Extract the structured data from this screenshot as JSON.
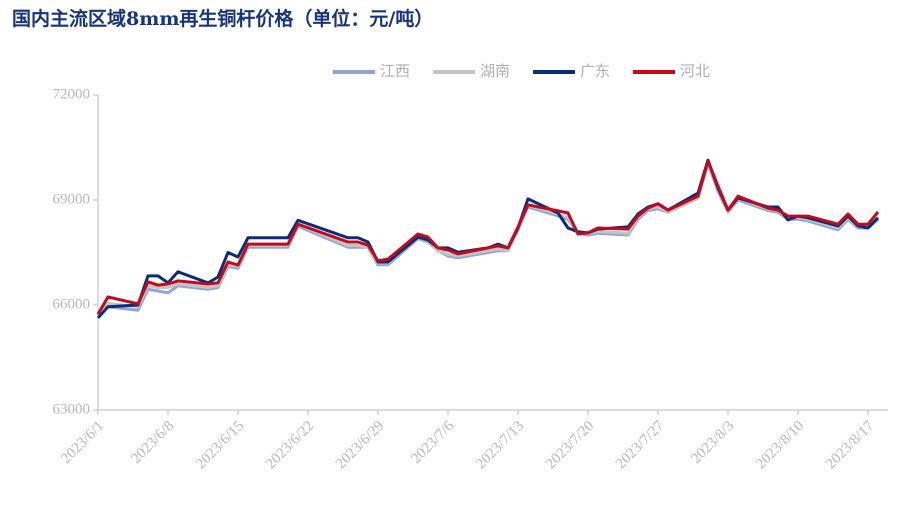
{
  "chart_data": {
    "type": "line",
    "title": "国内主流区域8mm再生铜杆价格（单位：元/吨）",
    "x": [
      "2023/6/1",
      "2023/6/2",
      "2023/6/5",
      "2023/6/6",
      "2023/6/7",
      "2023/6/8",
      "2023/6/9",
      "2023/6/12",
      "2023/6/13",
      "2023/6/14",
      "2023/6/15",
      "2023/6/16",
      "2023/6/19",
      "2023/6/20",
      "2023/6/21",
      "2023/6/26",
      "2023/6/27",
      "2023/6/28",
      "2023/6/29",
      "2023/6/30",
      "2023/7/3",
      "2023/7/4",
      "2023/7/5",
      "2023/7/6",
      "2023/7/7",
      "2023/7/10",
      "2023/7/11",
      "2023/7/12",
      "2023/7/13",
      "2023/7/14",
      "2023/7/17",
      "2023/7/18",
      "2023/7/19",
      "2023/7/20",
      "2023/7/21",
      "2023/7/24",
      "2023/7/25",
      "2023/7/26",
      "2023/7/27",
      "2023/7/28",
      "2023/7/31",
      "2023/8/1",
      "2023/8/2",
      "2023/8/3",
      "2023/8/4",
      "2023/8/7",
      "2023/8/8",
      "2023/8/9",
      "2023/8/10",
      "2023/8/11",
      "2023/8/14",
      "2023/8/15",
      "2023/8/16",
      "2023/8/17",
      "2023/8/18"
    ],
    "xlim": [
      "2023/6/1",
      "2023/8/19"
    ],
    "xticks": [
      "2023/6/1",
      "2023/6/8",
      "2023/6/15",
      "2023/6/22",
      "2023/6/29",
      "2023/7/6",
      "2023/7/13",
      "2023/7/20",
      "2023/7/27",
      "2023/8/3",
      "2023/8/10",
      "2023/8/17"
    ],
    "ylim": [
      63000,
      72000
    ],
    "yticks": [
      63000,
      66000,
      69000,
      72000
    ],
    "grid": false,
    "legend": "top",
    "series": [
      {
        "name": "江西",
        "color": "#8fa6d4",
        "values": [
          65700,
          65950,
          65850,
          66450,
          66400,
          66350,
          66550,
          66450,
          66500,
          67100,
          67050,
          67650,
          67650,
          67650,
          68250,
          67650,
          67650,
          67650,
          67150,
          67150,
          67900,
          67800,
          67550,
          67400,
          67350,
          67500,
          67550,
          67550,
          68150,
          68800,
          68550,
          68450,
          68050,
          68000,
          68050,
          68000,
          68450,
          68700,
          68750,
          68650,
          69050,
          70050,
          69250,
          68650,
          69000,
          68700,
          68650,
          68450,
          68450,
          68400,
          68150,
          68450,
          68200,
          68200,
          68450
        ]
      },
      {
        "name": "湖南",
        "color": "#c4c4c4",
        "values": [
          65750,
          66050,
          65950,
          66550,
          66500,
          66500,
          66600,
          66500,
          66550,
          67150,
          67100,
          67700,
          67700,
          67700,
          68300,
          67700,
          67700,
          67650,
          67200,
          67200,
          67950,
          67850,
          67550,
          67450,
          67400,
          67550,
          67600,
          67550,
          68200,
          68850,
          68600,
          68500,
          68050,
          68050,
          68100,
          68050,
          68500,
          68750,
          68800,
          68650,
          69050,
          70100,
          69300,
          68650,
          69050,
          68750,
          68700,
          68500,
          68500,
          68450,
          68200,
          68500,
          68250,
          68250,
          68500
        ]
      },
      {
        "name": "广东",
        "color": "#0b2d78",
        "values": [
          65630,
          65950,
          66000,
          66830,
          66830,
          66630,
          66950,
          66630,
          66800,
          67500,
          67370,
          67920,
          67920,
          67920,
          68420,
          67920,
          67920,
          67800,
          67230,
          67230,
          67940,
          67860,
          67630,
          67630,
          67510,
          67630,
          67740,
          67630,
          68200,
          69030,
          68630,
          68200,
          68090,
          68060,
          68170,
          68230,
          68600,
          68800,
          68890,
          68710,
          69200,
          70140,
          69340,
          68710,
          69060,
          68800,
          68800,
          68430,
          68540,
          68490,
          68260,
          68540,
          68260,
          68200,
          68490
        ]
      },
      {
        "name": "河北",
        "color": "#c20a1e",
        "values": [
          65740,
          66230,
          66030,
          66660,
          66570,
          66600,
          66690,
          66600,
          66630,
          67230,
          67140,
          67740,
          67740,
          67740,
          68310,
          67800,
          67800,
          67710,
          67260,
          67310,
          68030,
          67940,
          67630,
          67570,
          67460,
          67630,
          67690,
          67630,
          68230,
          68860,
          68690,
          68630,
          68030,
          68060,
          68200,
          68170,
          68540,
          68770,
          68890,
          68710,
          69110,
          70110,
          69400,
          68710,
          69110,
          68770,
          68710,
          68540,
          68540,
          68540,
          68310,
          68600,
          68310,
          68310,
          68660
        ]
      }
    ]
  }
}
